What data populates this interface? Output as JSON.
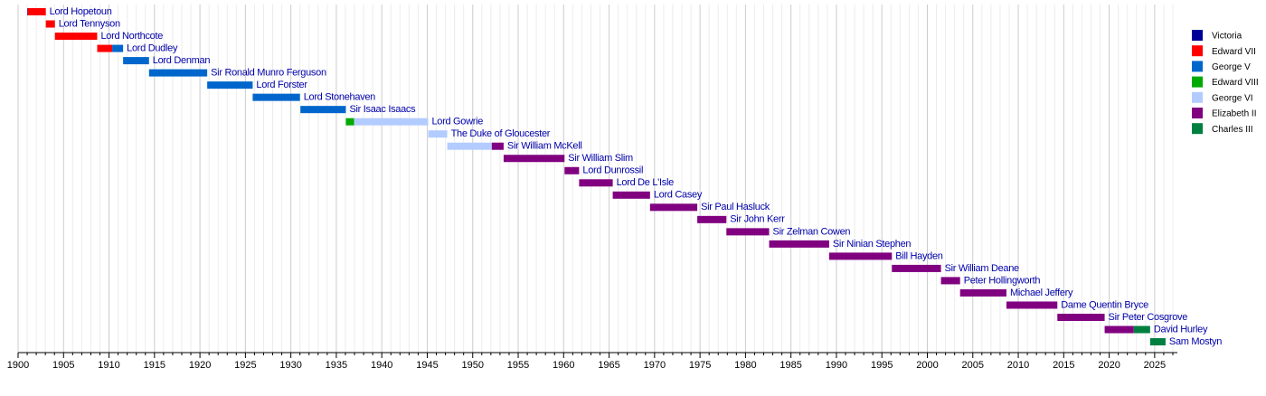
{
  "chart_data": {
    "type": "timeline",
    "series": [
      {
        "name": "Victoria",
        "color": "#000099"
      },
      {
        "name": "Edward VII",
        "color": "#ff0000"
      },
      {
        "name": "George V",
        "color": "#0066cc"
      },
      {
        "name": "Edward VIII",
        "color": "#00aa00"
      },
      {
        "name": "George VI",
        "color": "#b3ccff"
      },
      {
        "name": "Elizabeth II",
        "color": "#800080"
      },
      {
        "name": "Charles III",
        "color": "#008040"
      }
    ],
    "rows": [
      {
        "label": "Lord Hopetoun",
        "segments": [
          {
            "series": 0,
            "start": 1901.0,
            "end": 1901.06
          },
          {
            "series": 1,
            "start": 1901.06,
            "end": 1903.05
          }
        ]
      },
      {
        "label": "Lord Tennyson",
        "segments": [
          {
            "series": 1,
            "start": 1903.05,
            "end": 1904.05
          }
        ]
      },
      {
        "label": "Lord Northcote",
        "segments": [
          {
            "series": 1,
            "start": 1904.05,
            "end": 1908.7
          }
        ]
      },
      {
        "label": "Lord Dudley",
        "segments": [
          {
            "series": 1,
            "start": 1908.7,
            "end": 1910.35
          },
          {
            "series": 2,
            "start": 1910.35,
            "end": 1911.55
          }
        ]
      },
      {
        "label": "Lord Denman",
        "segments": [
          {
            "series": 2,
            "start": 1911.55,
            "end": 1914.4
          }
        ]
      },
      {
        "label": "Sir Ronald Munro Ferguson",
        "segments": [
          {
            "series": 2,
            "start": 1914.4,
            "end": 1920.8
          }
        ]
      },
      {
        "label": "Lord Forster",
        "segments": [
          {
            "series": 2,
            "start": 1920.8,
            "end": 1925.8
          }
        ]
      },
      {
        "label": "Lord Stonehaven",
        "segments": [
          {
            "series": 2,
            "start": 1925.8,
            "end": 1931.0
          }
        ]
      },
      {
        "label": "Sir Isaac Isaacs",
        "segments": [
          {
            "series": 2,
            "start": 1931.05,
            "end": 1936.05
          }
        ]
      },
      {
        "label": "Lord Gowrie",
        "segments": [
          {
            "series": 3,
            "start": 1936.05,
            "end": 1936.95
          },
          {
            "series": 4,
            "start": 1936.95,
            "end": 1945.1
          }
        ]
      },
      {
        "label": "The Duke of Gloucester",
        "segments": [
          {
            "series": 4,
            "start": 1945.1,
            "end": 1947.2
          }
        ]
      },
      {
        "label": "Sir William McKell",
        "segments": [
          {
            "series": 4,
            "start": 1947.2,
            "end": 1952.1
          },
          {
            "series": 5,
            "start": 1952.1,
            "end": 1953.4
          }
        ]
      },
      {
        "label": "Sir William Slim",
        "segments": [
          {
            "series": 5,
            "start": 1953.4,
            "end": 1960.1
          }
        ]
      },
      {
        "label": "Lord Dunrossil",
        "segments": [
          {
            "series": 5,
            "start": 1960.1,
            "end": 1961.7
          }
        ]
      },
      {
        "label": "Lord De L'Isle",
        "segments": [
          {
            "series": 5,
            "start": 1961.7,
            "end": 1965.4
          }
        ]
      },
      {
        "label": "Lord Casey",
        "segments": [
          {
            "series": 5,
            "start": 1965.4,
            "end": 1969.5
          }
        ]
      },
      {
        "label": "Sir Paul Hasluck",
        "segments": [
          {
            "series": 5,
            "start": 1969.5,
            "end": 1974.7
          }
        ]
      },
      {
        "label": "Sir John Kerr",
        "segments": [
          {
            "series": 5,
            "start": 1974.7,
            "end": 1977.9
          }
        ]
      },
      {
        "label": "Sir Zelman Cowen",
        "segments": [
          {
            "series": 5,
            "start": 1977.9,
            "end": 1982.6
          }
        ]
      },
      {
        "label": "Sir Ninian Stephen",
        "segments": [
          {
            "series": 5,
            "start": 1982.6,
            "end": 1989.2
          }
        ]
      },
      {
        "label": "Bill Hayden",
        "segments": [
          {
            "series": 5,
            "start": 1989.2,
            "end": 1996.1
          }
        ]
      },
      {
        "label": "Sir William Deane",
        "segments": [
          {
            "series": 5,
            "start": 1996.1,
            "end": 2001.5
          }
        ]
      },
      {
        "label": "Peter Hollingworth",
        "segments": [
          {
            "series": 5,
            "start": 2001.5,
            "end": 2003.6
          }
        ]
      },
      {
        "label": "Michael Jeffery",
        "segments": [
          {
            "series": 5,
            "start": 2003.6,
            "end": 2008.7
          }
        ]
      },
      {
        "label": "Dame Quentin Bryce",
        "segments": [
          {
            "series": 5,
            "start": 2008.7,
            "end": 2014.3
          }
        ]
      },
      {
        "label": "Sir Peter Cosgrove",
        "segments": [
          {
            "series": 5,
            "start": 2014.3,
            "end": 2019.5
          }
        ]
      },
      {
        "label": "David Hurley",
        "segments": [
          {
            "series": 5,
            "start": 2019.5,
            "end": 2022.7
          },
          {
            "series": 6,
            "start": 2022.7,
            "end": 2024.5
          }
        ]
      },
      {
        "label": "Sam Mostyn",
        "segments": [
          {
            "series": 6,
            "start": 2024.5,
            "end": 2026.2
          }
        ]
      }
    ],
    "xlim": [
      1900,
      2027.5
    ],
    "xticks": [
      1900,
      1905,
      1910,
      1915,
      1920,
      1925,
      1930,
      1935,
      1940,
      1945,
      1950,
      1955,
      1960,
      1965,
      1970,
      1975,
      1980,
      1985,
      1990,
      1995,
      2000,
      2005,
      2010,
      2015,
      2020,
      2025
    ],
    "xminorticks": [
      1901,
      1902,
      1903,
      1904,
      1906,
      1907,
      1908,
      1909,
      1911,
      1912,
      1913,
      1914,
      1916,
      1917,
      1918,
      1919,
      1921,
      1922,
      1923,
      1924,
      1926,
      1927,
      1928,
      1929,
      1931,
      1932,
      1933,
      1934,
      1936,
      1937,
      1938,
      1939,
      1941,
      1942,
      1943,
      1944,
      1946,
      1947,
      1948,
      1949,
      1951,
      1952,
      1953,
      1954,
      1956,
      1957,
      1958,
      1959,
      1961,
      1962,
      1963,
      1964,
      1966,
      1967,
      1968,
      1969,
      1971,
      1972,
      1973,
      1974,
      1976,
      1977,
      1978,
      1979,
      1981,
      1982,
      1983,
      1984,
      1986,
      1987,
      1988,
      1989,
      1991,
      1992,
      1993,
      1994,
      1996,
      1997,
      1998,
      1999,
      2001,
      2002,
      2003,
      2004,
      2006,
      2007,
      2008,
      2009,
      2011,
      2012,
      2013,
      2014,
      2016,
      2017,
      2018,
      2019,
      2021,
      2022,
      2023,
      2024,
      2026,
      2027
    ],
    "grid": true,
    "legend": "right"
  }
}
